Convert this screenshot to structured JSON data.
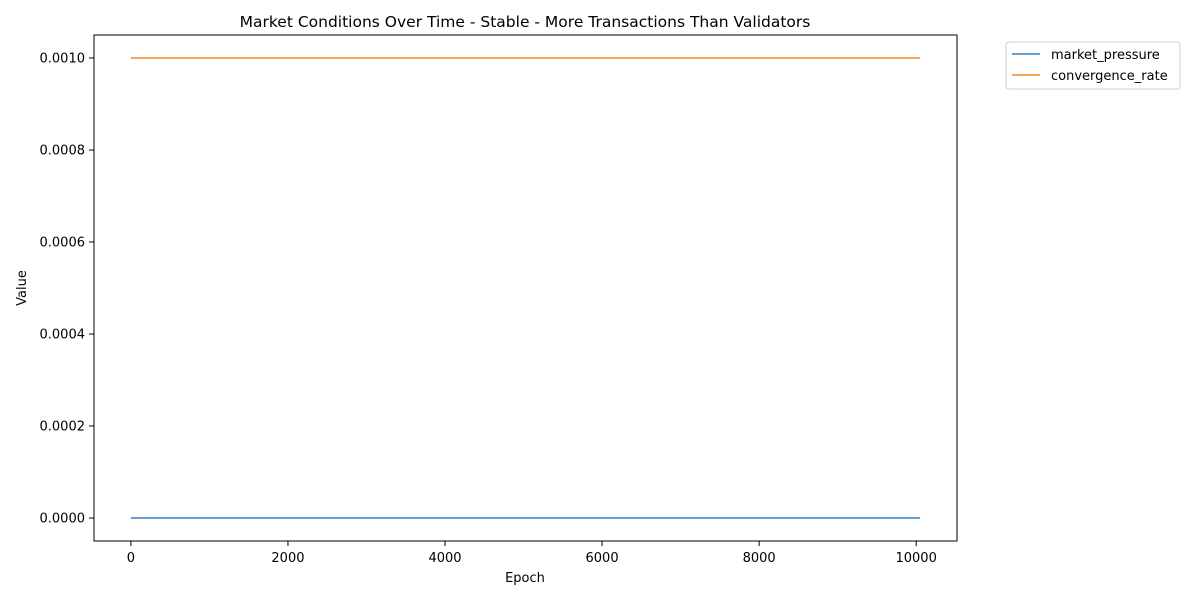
{
  "chart_data": {
    "type": "line",
    "title": "Market Conditions Over Time - Stable - More Transactions Than Validators",
    "xlabel": "Epoch",
    "ylabel": "Value",
    "xlim": [
      -470,
      10520
    ],
    "ylim": [
      -5e-05,
      0.00105
    ],
    "x_ticks": [
      0,
      2000,
      4000,
      6000,
      8000,
      10000
    ],
    "x_tick_labels": [
      "0",
      "2000",
      "4000",
      "6000",
      "8000",
      "10000"
    ],
    "y_ticks": [
      0.0,
      0.0002,
      0.0004,
      0.0006,
      0.0008,
      0.001
    ],
    "y_tick_labels": [
      "0.0000",
      "0.0002",
      "0.0004",
      "0.0006",
      "0.0008",
      "0.0010"
    ],
    "grid": false,
    "legend_position": "outside-top-right",
    "series": [
      {
        "name": "market_pressure",
        "color": "#6a9fcb",
        "x": [
          0,
          10050
        ],
        "values": [
          0.0,
          0.0
        ]
      },
      {
        "name": "convergence_rate",
        "color": "#f5a55c",
        "x": [
          0,
          10050
        ],
        "values": [
          0.001,
          0.001
        ]
      }
    ]
  }
}
